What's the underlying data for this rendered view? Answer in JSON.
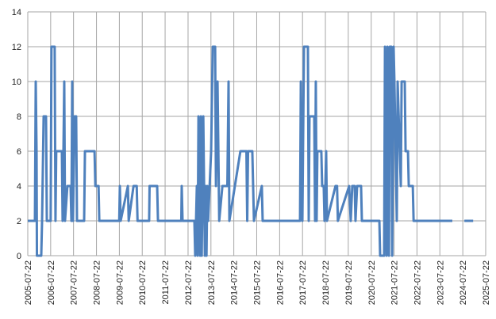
{
  "chart_data": {
    "type": "line",
    "color": "#4f81bd",
    "grid": true,
    "xlim": [
      "2005-07-22",
      "2025-07-22"
    ],
    "xticks": [
      "2005-07-22",
      "2006-07-22",
      "2007-07-22",
      "2008-07-22",
      "2009-07-22",
      "2010-07-22",
      "2011-07-22",
      "2012-07-22",
      "2013-07-22",
      "2014-07-22",
      "2015-07-22",
      "2016-07-22",
      "2017-07-22",
      "2018-07-22",
      "2019-07-22",
      "2020-07-22",
      "2021-07-22",
      "2022-07-22",
      "2023-07-22",
      "2024-07-22",
      "2025-07-22"
    ],
    "ylim": [
      0,
      14
    ],
    "yticks": [
      0,
      2,
      4,
      6,
      8,
      10,
      12,
      14
    ],
    "x": [
      "2005-07-22",
      "2005-11-13",
      "2005-11-26",
      "2005-12-09",
      "2005-12-15",
      "2006-02-22",
      "2006-03-07",
      "2006-04-01",
      "2006-05-09",
      "2006-05-22",
      "2006-07-22",
      "2006-08-04",
      "2006-09-24",
      "2006-10-07",
      "2006-10-19",
      "2007-01-17",
      "2007-01-29",
      "2007-02-24",
      "2007-03-08",
      "2007-04-15",
      "2007-06-05",
      "2007-06-18",
      "2007-07-01",
      "2007-07-13",
      "2007-08-08",
      "2007-09-02",
      "2007-09-15",
      "2008-01-07",
      "2008-01-20",
      "2008-06-21",
      "2008-07-04",
      "2008-08-24",
      "2008-09-05",
      "2009-07-20",
      "2009-07-30",
      "2009-08-12",
      "2009-12-05",
      "2009-12-18",
      "2010-03-05",
      "2010-04-25",
      "2010-05-08",
      "2010-11-09",
      "2010-11-16",
      "2011-03-17",
      "2011-03-30",
      "2012-04-05",
      "2012-04-12",
      "2012-04-25",
      "2012-10-31",
      "2012-11-13",
      "2012-12-09",
      "2012-12-22",
      "2013-01-04",
      "2013-01-30",
      "2013-02-12",
      "2013-02-25",
      "2013-03-22",
      "2013-04-16",
      "2013-04-29",
      "2013-05-12",
      "2013-05-25",
      "2013-06-07",
      "2013-07-25",
      "2013-08-20",
      "2013-09-27",
      "2013-10-10",
      "2013-11-04",
      "2013-12-01",
      "2014-01-21",
      "2014-04-10",
      "2014-04-29",
      "2014-05-12",
      "2014-11-04",
      "2015-02-08",
      "2015-02-21",
      "2015-03-06",
      "2015-05-13",
      "2015-05-26",
      "2015-06-08",
      "2015-10-12",
      "2015-10-25",
      "2017-06-12",
      "2017-06-25",
      "2017-07-20",
      "2017-08-14",
      "2017-10-16",
      "2017-10-29",
      "2017-11-10",
      "2018-01-25",
      "2018-02-07",
      "2018-02-19",
      "2018-03-04",
      "2018-03-16",
      "2018-05-18",
      "2018-05-31",
      "2018-06-25",
      "2018-07-08",
      "2018-08-03",
      "2018-08-16",
      "2018-12-30",
      "2019-01-24",
      "2019-02-06",
      "2019-08-05",
      "2019-08-30",
      "2019-09-24",
      "2019-11-01",
      "2019-11-14",
      "2019-12-10",
      "2020-02-11",
      "2020-02-24",
      "2020-11-29",
      "2020-12-11",
      "2021-02-13",
      "2021-02-26",
      "2021-03-24",
      "2021-04-06",
      "2021-05-01",
      "2021-05-14",
      "2021-06-08",
      "2021-06-21",
      "2021-07-14",
      "2021-07-27",
      "2021-09-03",
      "2021-09-16",
      "2021-11-06",
      "2021-11-19",
      "2022-01-08",
      "2022-01-21",
      "2022-02-28",
      "2022-03-13",
      "2022-05-16",
      "2022-05-29",
      "2024-02-06",
      "2024-05-01",
      "2024-08-16",
      "2025-01-03"
    ],
    "values": [
      2,
      2,
      10,
      6,
      0,
      0,
      2,
      8,
      8,
      2,
      2,
      12,
      12,
      2,
      6,
      6,
      2,
      10,
      2,
      4,
      4,
      2,
      10,
      2,
      8,
      8,
      2,
      2,
      6,
      6,
      4,
      4,
      2,
      2,
      4,
      2,
      4,
      2,
      4,
      4,
      2,
      2,
      4,
      4,
      2,
      2,
      4,
      2,
      2,
      0,
      4,
      0,
      8,
      0,
      8,
      0,
      8,
      0,
      4,
      0,
      4,
      2,
      6,
      12,
      12,
      4,
      10,
      2,
      4,
      4,
      10,
      2,
      6,
      6,
      2,
      6,
      6,
      4,
      2,
      4,
      2,
      2,
      10,
      2,
      12,
      12,
      2,
      8,
      8,
      2,
      10,
      2,
      6,
      6,
      4,
      4,
      2,
      6,
      2,
      4,
      4,
      2,
      4,
      2,
      4,
      4,
      2,
      4,
      4,
      2,
      2,
      0,
      0,
      12,
      0,
      12,
      0,
      12,
      12,
      0,
      12,
      10,
      2,
      10,
      4,
      10,
      10,
      6,
      6,
      4,
      4,
      2,
      2,
      null,
      2,
      2
    ]
  }
}
